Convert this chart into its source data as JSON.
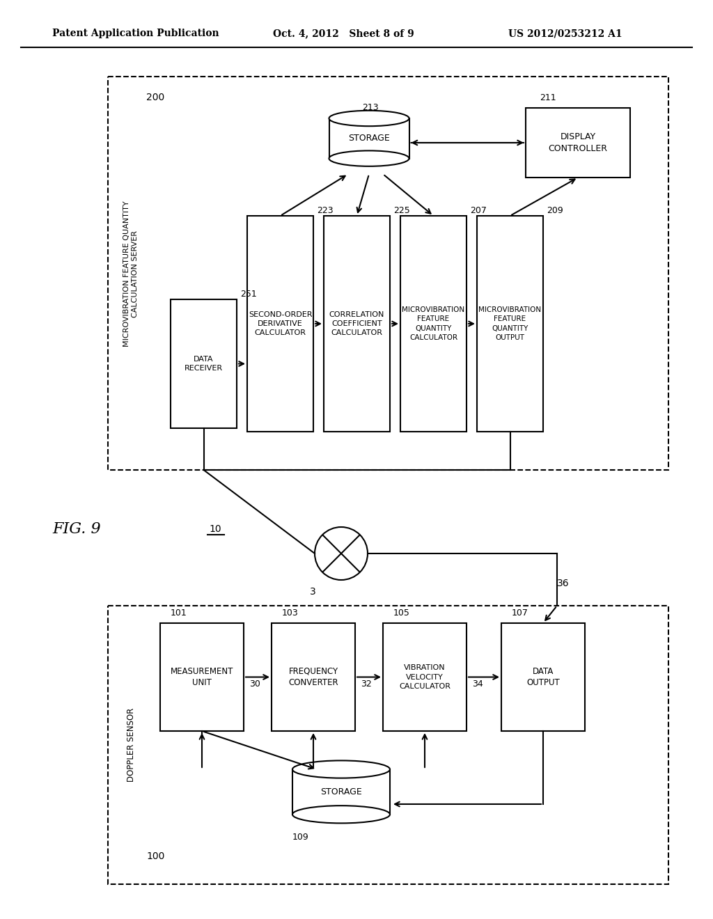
{
  "header_left": "Patent Application Publication",
  "header_middle": "Oct. 4, 2012   Sheet 8 of 9",
  "header_right": "US 2012/0253212 A1",
  "fig_label": "FIG. 9",
  "bg_color": "#ffffff",
  "line_color": "#000000",
  "box_fill": "#ffffff",
  "text_color": "#000000",
  "upper_box_label": "MICROVIBRATION FEATURE QUANTITY\nCALCULATION SERVER",
  "upper_box_id": "200",
  "lower_box_label": "DOPPLER SENSOR",
  "lower_box_id": "100",
  "network_label": "10",
  "network_node_label": "3",
  "network_line_label": "36"
}
